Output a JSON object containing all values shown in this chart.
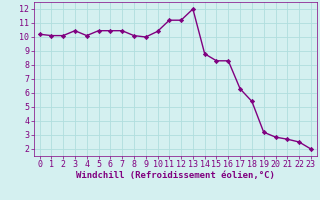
{
  "x": [
    0,
    1,
    2,
    3,
    4,
    5,
    6,
    7,
    8,
    9,
    10,
    11,
    12,
    13,
    14,
    15,
    16,
    17,
    18,
    19,
    20,
    21,
    22,
    23
  ],
  "y": [
    10.2,
    10.1,
    10.1,
    10.45,
    10.1,
    10.45,
    10.45,
    10.45,
    10.1,
    10.0,
    10.4,
    11.2,
    11.2,
    12.0,
    8.8,
    8.3,
    8.3,
    6.3,
    5.4,
    3.2,
    2.85,
    2.7,
    2.5,
    2.0
  ],
  "line_color": "#800080",
  "marker": "D",
  "marker_size": 2.2,
  "line_width": 1.0,
  "xlabel": "Windchill (Refroidissement éolien,°C)",
  "xlim": [
    -0.5,
    23.5
  ],
  "ylim": [
    1.5,
    12.5
  ],
  "yticks": [
    2,
    3,
    4,
    5,
    6,
    7,
    8,
    9,
    10,
    11,
    12
  ],
  "xticks": [
    0,
    1,
    2,
    3,
    4,
    5,
    6,
    7,
    8,
    9,
    10,
    11,
    12,
    13,
    14,
    15,
    16,
    17,
    18,
    19,
    20,
    21,
    22,
    23
  ],
  "bg_color": "#d4f0f0",
  "grid_color": "#b0dede",
  "tick_color": "#800080",
  "label_color": "#800080",
  "font_size": 6.0,
  "xlabel_fontsize": 6.5
}
